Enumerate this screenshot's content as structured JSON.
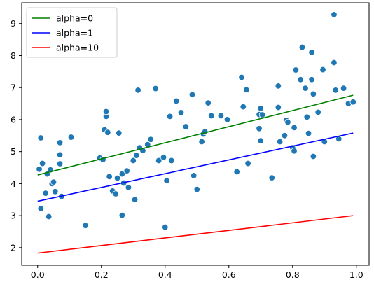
{
  "chart_data": {
    "type": "scatter",
    "xlim": [
      -0.05,
      1.04
    ],
    "ylim": [
      1.45,
      9.65
    ],
    "x_ticks": [
      "0.0",
      "0.2",
      "0.4",
      "0.6",
      "0.8",
      "1.0"
    ],
    "y_ticks": [
      "2",
      "3",
      "4",
      "5",
      "6",
      "7",
      "8",
      "9"
    ],
    "grid": false,
    "legend_position": "top-left",
    "points": {
      "color": "#1f77b4",
      "x": [
        0.005,
        0.01,
        0.01,
        0.015,
        0.025,
        0.03,
        0.035,
        0.04,
        0.045,
        0.05,
        0.055,
        0.07,
        0.07,
        0.07,
        0.075,
        0.105,
        0.15,
        0.195,
        0.205,
        0.21,
        0.215,
        0.215,
        0.22,
        0.225,
        0.235,
        0.245,
        0.25,
        0.255,
        0.265,
        0.265,
        0.27,
        0.28,
        0.285,
        0.3,
        0.305,
        0.31,
        0.315,
        0.32,
        0.33,
        0.345,
        0.355,
        0.37,
        0.38,
        0.395,
        0.4,
        0.405,
        0.415,
        0.42,
        0.435,
        0.45,
        0.465,
        0.485,
        0.49,
        0.5,
        0.515,
        0.52,
        0.525,
        0.535,
        0.545,
        0.575,
        0.595,
        0.625,
        0.64,
        0.645,
        0.655,
        0.66,
        0.695,
        0.695,
        0.7,
        0.7,
        0.705,
        0.735,
        0.755,
        0.755,
        0.76,
        0.775,
        0.78,
        0.785,
        0.8,
        0.805,
        0.805,
        0.81,
        0.81,
        0.825,
        0.83,
        0.84,
        0.845,
        0.85,
        0.86,
        0.86,
        0.865,
        0.865,
        0.88,
        0.895,
        0.9,
        0.93,
        0.93,
        0.935,
        0.945,
        0.96,
        0.975,
        0.99
      ],
      "y": [
        4.45,
        3.22,
        5.43,
        4.63,
        3.7,
        4.3,
        2.97,
        4.43,
        4.0,
        4.05,
        3.75,
        4.9,
        5.28,
        4.62,
        3.6,
        5.45,
        2.69,
        4.8,
        4.75,
        5.68,
        6.1,
        6.25,
        5.6,
        4.22,
        3.77,
        3.68,
        4.17,
        5.58,
        3.01,
        4.3,
        4.02,
        4.4,
        3.88,
        4.72,
        3.5,
        4.88,
        6.92,
        5.12,
        5.03,
        5.22,
        5.38,
        6.97,
        4.72,
        4.82,
        2.64,
        4.09,
        6.1,
        4.72,
        6.58,
        6.22,
        5.78,
        6.78,
        4.25,
        3.82,
        5.31,
        5.55,
        5.62,
        6.52,
        6.12,
        6.12,
        6.0,
        4.37,
        7.32,
        6.4,
        6.93,
        4.63,
        6.16,
        5.72,
        5.34,
        6.35,
        6.15,
        4.18,
        7.05,
        6.38,
        5.31,
        5.5,
        5.98,
        5.92,
        5.12,
        5.02,
        5.75,
        7.52,
        7.55,
        7.25,
        8.26,
        6.98,
        6.08,
        5.57,
        8.1,
        7.25,
        6.8,
        4.85,
        6.23,
        7.56,
        5.31,
        9.28,
        7.78,
        6.92,
        5.4,
        6.98,
        6.5,
        6.55
      ]
    },
    "series": [
      {
        "name": "alpha=0",
        "color": "#008000",
        "x": [
          0.0,
          0.99
        ],
        "y": [
          4.27,
          6.76
        ]
      },
      {
        "name": "alpha=1",
        "color": "#0000ff",
        "x": [
          0.0,
          0.99
        ],
        "y": [
          3.45,
          5.58
        ]
      },
      {
        "name": "alpha=10",
        "color": "#ff0000",
        "x": [
          0.0,
          0.99
        ],
        "y": [
          1.83,
          3.0
        ]
      }
    ]
  }
}
